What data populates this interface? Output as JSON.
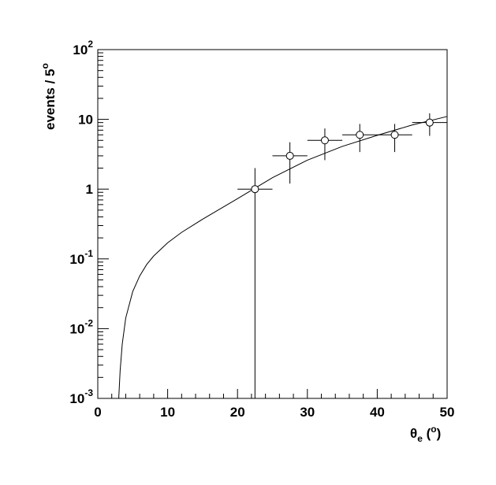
{
  "chart_data": {
    "type": "scatter",
    "xlabel": {
      "sym": "θ",
      "sub": "e",
      "open": " (",
      "sup": "o",
      "close": ")"
    },
    "ylabel": {
      "main": "events / 5",
      "sup": "o"
    },
    "xlim": [
      0,
      50
    ],
    "ylim": [
      0.001,
      100
    ],
    "yscale": "log",
    "x_ticks": [
      {
        "value": 0,
        "label": "0"
      },
      {
        "value": 10,
        "label": "10"
      },
      {
        "value": 20,
        "label": "20"
      },
      {
        "value": 30,
        "label": "30"
      },
      {
        "value": 40,
        "label": "40"
      },
      {
        "value": 50,
        "label": "50"
      }
    ],
    "y_ticks": [
      {
        "value": 0.001,
        "base": "10",
        "exp": "-3"
      },
      {
        "value": 0.01,
        "base": "10",
        "exp": "-2"
      },
      {
        "value": 0.1,
        "base": "10",
        "exp": "-1"
      },
      {
        "value": 1,
        "base": "1",
        "exp": ""
      },
      {
        "value": 10,
        "base": "10",
        "exp": ""
      },
      {
        "value": 100,
        "base": "10",
        "exp": "2"
      }
    ],
    "points": [
      {
        "x": 22.5,
        "y": 1,
        "x_err": 2.5,
        "y_low": 0.001,
        "y_high": 2.0
      },
      {
        "x": 27.5,
        "y": 3,
        "x_err": 2.5,
        "y_low": 1.2,
        "y_high": 4.7
      },
      {
        "x": 32.5,
        "y": 5,
        "x_err": 2.5,
        "y_low": 2.6,
        "y_high": 7.4
      },
      {
        "x": 37.5,
        "y": 6,
        "x_err": 2.5,
        "y_low": 3.4,
        "y_high": 8.6
      },
      {
        "x": 42.5,
        "y": 6,
        "x_err": 2.5,
        "y_low": 3.4,
        "y_high": 8.6
      },
      {
        "x": 47.5,
        "y": 9,
        "x_err": 2.5,
        "y_low": 5.8,
        "y_high": 12.2
      }
    ],
    "curve": {
      "x": [
        3.0,
        3.2,
        3.5,
        4,
        5,
        6,
        7,
        8,
        10,
        12,
        15,
        20,
        25,
        30,
        35,
        40,
        45,
        50
      ],
      "y": [
        0.001,
        0.0025,
        0.006,
        0.0142,
        0.034,
        0.057,
        0.083,
        0.11,
        0.17,
        0.24,
        0.37,
        0.73,
        1.46,
        2.6,
        4.1,
        5.9,
        8.3,
        11.0
      ]
    }
  }
}
